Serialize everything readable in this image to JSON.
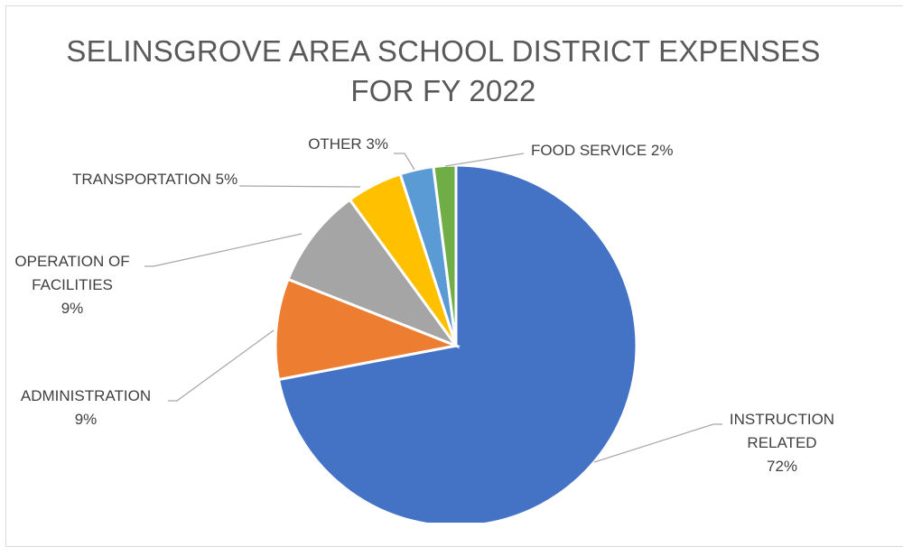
{
  "chart_data": {
    "type": "pie",
    "title_lines": [
      "SELINSGROVE AREA SCHOOL DISTRICT EXPENSES",
      "FOR FY 2022"
    ],
    "slices": [
      {
        "key": "instruction",
        "label_lines": [
          "INSTRUCTION",
          "RELATED",
          "72%"
        ],
        "value": 72,
        "color": "#4472C4"
      },
      {
        "key": "administration",
        "label_lines": [
          "ADMINISTRATION",
          "9%"
        ],
        "value": 9,
        "color": "#ED7D31"
      },
      {
        "key": "operation",
        "label_lines": [
          "OPERATION OF",
          "FACILITIES",
          "9%"
        ],
        "value": 9,
        "color": "#A5A5A5"
      },
      {
        "key": "transportation",
        "label_lines": [
          "TRANSPORTATION 5%"
        ],
        "value": 5,
        "color": "#FFC000"
      },
      {
        "key": "other",
        "label_lines": [
          "OTHER 3%"
        ],
        "value": 3,
        "color": "#5B9BD5"
      },
      {
        "key": "food",
        "label_lines": [
          "FOOD SERVICE 2%"
        ],
        "value": 2,
        "color": "#70AD47"
      }
    ]
  }
}
